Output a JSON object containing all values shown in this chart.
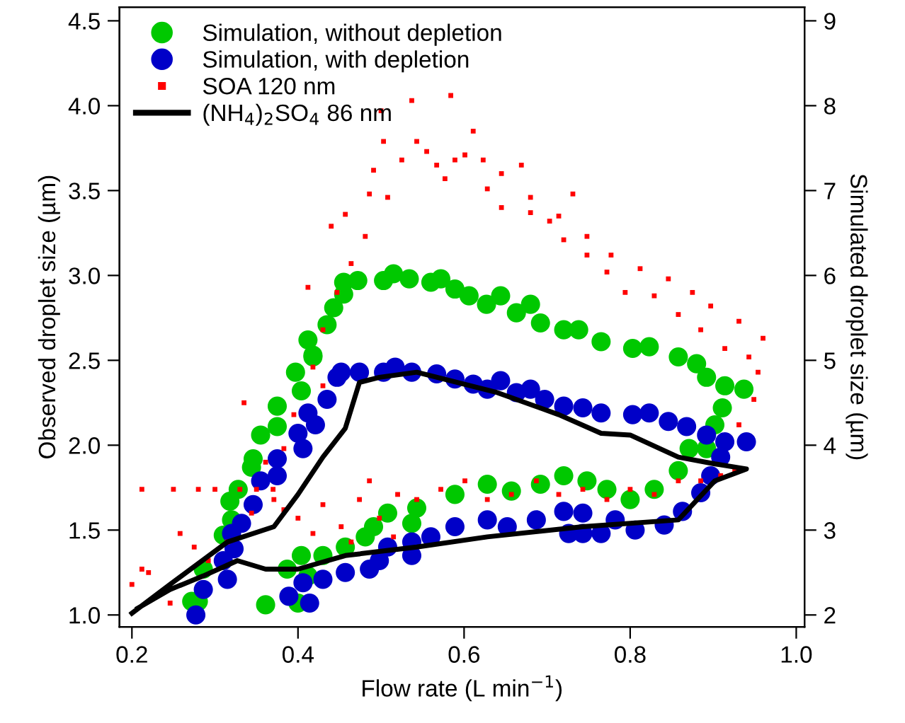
{
  "chart_data": {
    "type": "scatter",
    "xlabel": "Flow rate (L min$^{−1}$)",
    "ylabel": "Observed droplet size (µm)",
    "y2label": "Simulated droplet size (µm)",
    "xlim": [
      0.185,
      1.01
    ],
    "xticks": [
      0.2,
      0.4,
      0.6,
      0.8,
      {
        "value": 1,
        "label": "1.0"
      }
    ],
    "ylim": [
      0.93,
      4.58
    ],
    "yticks": [
      {
        "value": 1,
        "label": "1.0"
      },
      1.5,
      {
        "value": 2,
        "label": "2.0"
      },
      2.5,
      {
        "value": 3,
        "label": "3.0"
      },
      3.5,
      {
        "value": 4,
        "label": "4.0"
      },
      4.5
    ],
    "y2lim": [
      1.86,
      9.16
    ],
    "y2ticks": [
      2,
      3,
      4,
      5,
      6,
      7,
      8,
      9
    ],
    "grid": false,
    "legend": "top left",
    "series": [
      {
        "name": "Simulation, without depletion",
        "marker": "circle",
        "color": "#00c800",
        "axis": "y2",
        "x": [
          0.412,
          0.418,
          0.435,
          0.443,
          0.455,
          0.455,
          0.472,
          0.503,
          0.515,
          0.534,
          0.56,
          0.572,
          0.589,
          0.606,
          0.627,
          0.644,
          0.663,
          0.68,
          0.692,
          0.72,
          0.738,
          0.765,
          0.803,
          0.823,
          0.858,
          0.88,
          0.892,
          0.914,
          0.937,
          0.911,
          0.902,
          0.892,
          0.871,
          0.858,
          0.829,
          0.8,
          0.772,
          0.748,
          0.72,
          0.692,
          0.657,
          0.628,
          0.589,
          0.543,
          0.537,
          0.508,
          0.491,
          0.481,
          0.457,
          0.43,
          0.404,
          0.387,
          0.412,
          0.4,
          0.361,
          0.286,
          0.272,
          0.28,
          0.31,
          0.32,
          0.318,
          0.328,
          0.344,
          0.346,
          0.355,
          0.375,
          0.375,
          0.404,
          0.397,
          0.418
        ],
        "values": [
          5.24,
          5.06,
          5.42,
          5.62,
          5.78,
          5.92,
          5.94,
          5.94,
          6.02,
          5.96,
          5.92,
          5.96,
          5.84,
          5.76,
          5.66,
          5.76,
          5.56,
          5.66,
          5.44,
          5.36,
          5.36,
          5.22,
          5.14,
          5.16,
          5.04,
          4.96,
          4.8,
          4.7,
          4.66,
          4.44,
          4.24,
          3.96,
          3.96,
          3.7,
          3.48,
          3.36,
          3.48,
          3.58,
          3.64,
          3.54,
          3.46,
          3.54,
          3.42,
          3.26,
          3.08,
          3.2,
          3.04,
          2.92,
          2.8,
          2.7,
          2.7,
          2.54,
          2.46,
          2.14,
          2.12,
          2.54,
          2.16,
          2.16,
          2.94,
          3.12,
          3.34,
          3.48,
          3.74,
          3.84,
          4.12,
          4.22,
          4.46,
          4.64,
          4.86,
          5.04
        ]
      },
      {
        "name": "Simulation, with depletion",
        "marker": "circle",
        "color": "#0000c8",
        "axis": "y2",
        "x": [
          0.277,
          0.286,
          0.315,
          0.31,
          0.323,
          0.32,
          0.332,
          0.346,
          0.355,
          0.375,
          0.375,
          0.406,
          0.4,
          0.421,
          0.412,
          0.435,
          0.447,
          0.452,
          0.474,
          0.503,
          0.517,
          0.537,
          0.567,
          0.589,
          0.611,
          0.628,
          0.644,
          0.663,
          0.68,
          0.697,
          0.72,
          0.743,
          0.765,
          0.803,
          0.823,
          0.846,
          0.868,
          0.892,
          0.914,
          0.94,
          0.909,
          0.897,
          0.885,
          0.863,
          0.841,
          0.806,
          0.782,
          0.765,
          0.743,
          0.743,
          0.726,
          0.72,
          0.687,
          0.652,
          0.628,
          0.589,
          0.56,
          0.537,
          0.537,
          0.508,
          0.498,
          0.486,
          0.457,
          0.43,
          0.406,
          0.389,
          0.414
        ],
        "values": [
          2.0,
          2.3,
          2.42,
          2.64,
          2.78,
          2.96,
          3.08,
          3.3,
          3.58,
          3.64,
          3.84,
          3.96,
          4.14,
          4.24,
          4.38,
          4.54,
          4.8,
          4.86,
          4.86,
          4.86,
          4.92,
          4.86,
          4.84,
          4.78,
          4.72,
          4.66,
          4.76,
          4.62,
          4.66,
          4.54,
          4.46,
          4.44,
          4.38,
          4.36,
          4.38,
          4.28,
          4.22,
          4.12,
          4.04,
          4.04,
          3.86,
          3.64,
          3.44,
          3.22,
          3.06,
          3.0,
          3.12,
          2.96,
          2.96,
          3.2,
          2.96,
          3.22,
          3.12,
          3.04,
          3.12,
          3.04,
          2.92,
          2.86,
          2.7,
          2.8,
          2.64,
          2.54,
          2.5,
          2.42,
          2.38,
          2.22,
          2.14
        ]
      },
      {
        "name": "SOA 120 nm",
        "marker": "square",
        "color": "#ff0000",
        "x": [
          0.412,
          0.44,
          0.457,
          0.486,
          0.491,
          0.503,
          0.5,
          0.537,
          0.543,
          0.567,
          0.584,
          0.577,
          0.601,
          0.611,
          0.628,
          0.645,
          0.669,
          0.68,
          0.703,
          0.731,
          0.72,
          0.748,
          0.772,
          0.794,
          0.829,
          0.858,
          0.885,
          0.914,
          0.943,
          0.96,
          0.931,
          0.897,
          0.875,
          0.846,
          0.812,
          0.777,
          0.748,
          0.714,
          0.68,
          0.645,
          0.623,
          0.589,
          0.555,
          0.525,
          0.508,
          0.481,
          0.464,
          0.447,
          0.43,
          0.418,
          0.43,
          0.395,
          0.383,
          0.361,
          0.335,
          0.954,
          0.949,
          0.931,
          0.926,
          0.212,
          0.25,
          0.28,
          0.3,
          0.33,
          0.35,
          0.37,
          0.258,
          0.275,
          0.212,
          0.22,
          0.2,
          0.292,
          0.344,
          0.371,
          0.4,
          0.43,
          0.452,
          0.474,
          0.498,
          0.52,
          0.543,
          0.572,
          0.601,
          0.628,
          0.657,
          0.687,
          0.714,
          0.743,
          0.772,
          0.8,
          0.829,
          0.858,
          0.885,
          0.909,
          0.464,
          0.418,
          0.383,
          0.315,
          0.246,
          0.486,
          0.515
        ],
        "values": [
          2.93,
          3.29,
          3.36,
          3.48,
          3.62,
          3.79,
          3.97,
          4.03,
          3.79,
          3.65,
          4.06,
          3.57,
          3.71,
          3.85,
          3.51,
          3.4,
          3.65,
          3.37,
          3.32,
          3.48,
          3.21,
          3.12,
          3.02,
          2.9,
          2.88,
          2.77,
          2.68,
          2.57,
          2.52,
          2.63,
          2.73,
          2.82,
          2.9,
          2.98,
          3.04,
          3.12,
          3.23,
          3.35,
          3.46,
          3.6,
          3.68,
          3.68,
          3.73,
          3.68,
          3.46,
          3.23,
          3.07,
          2.9,
          2.68,
          2.46,
          2.35,
          2.18,
          1.98,
          1.9,
          2.25,
          2.43,
          2.27,
          2.12,
          1.85,
          1.74,
          1.74,
          1.74,
          1.74,
          1.74,
          1.74,
          1.74,
          1.48,
          1.4,
          1.27,
          1.25,
          1.18,
          1.32,
          1.6,
          1.68,
          1.57,
          1.65,
          1.52,
          1.68,
          1.57,
          1.71,
          1.68,
          1.74,
          1.79,
          1.68,
          1.71,
          1.79,
          1.71,
          1.74,
          1.68,
          1.74,
          1.71,
          1.79,
          1.79,
          1.82,
          1.43,
          1.48,
          1.62,
          1.43,
          1.07,
          1.79,
          1.46
        ]
      },
      {
        "name": "(NH$_{4}$)$_{2}$SO$_{4}$ 86 nm",
        "type": "line",
        "marker": "none",
        "line_style": "solid",
        "color": "#000000",
        "x": [
          0.2,
          0.246,
          0.315,
          0.371,
          0.4,
          0.43,
          0.457,
          0.474,
          0.498,
          0.543,
          0.64,
          0.714,
          0.765,
          0.8,
          0.858,
          0.902,
          0.94,
          0.902,
          0.858,
          0.743,
          0.628,
          0.543,
          0.457,
          0.4,
          0.361,
          0.327,
          0.286,
          0.246,
          0.207
        ],
        "values": [
          1.01,
          1.18,
          1.43,
          1.52,
          1.71,
          1.93,
          2.1,
          2.37,
          2.4,
          2.43,
          2.31,
          2.18,
          2.07,
          2.06,
          1.93,
          1.89,
          1.86,
          1.79,
          1.56,
          1.52,
          1.46,
          1.4,
          1.35,
          1.27,
          1.27,
          1.32,
          1.23,
          1.15,
          1.04
        ]
      }
    ]
  }
}
